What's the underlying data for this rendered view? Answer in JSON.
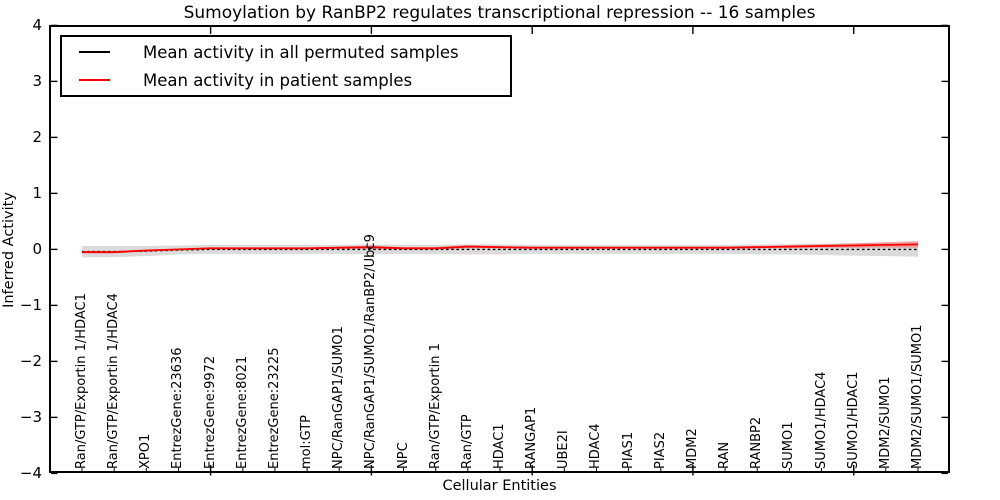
{
  "title": "Sumoylation by RanBP2 regulates transcriptional repression -- 16 samples",
  "axes": {
    "ylabel": "Inferred Activity",
    "xlabel": "Cellular Entities",
    "ytick_labels": [
      "−4",
      "−3",
      "−2",
      "−1",
      "0",
      "1",
      "2",
      "3",
      "4"
    ],
    "yticks": [
      -4,
      -3,
      -2,
      -1,
      0,
      1,
      2,
      3,
      4
    ]
  },
  "legend": {
    "items": [
      {
        "label": "Mean activity in all permuted samples",
        "color": "#000000"
      },
      {
        "label": "Mean activity in patient samples",
        "color": "#ff0000"
      }
    ]
  },
  "chart_data": {
    "type": "line",
    "title": "Sumoylation by RanBP2 regulates transcriptional repression -- 16 samples",
    "xlabel": "Cellular Entities",
    "ylabel": "Inferred Activity",
    "ylim": [
      -4,
      4
    ],
    "grid": false,
    "legend_position": "upper left",
    "categories": [
      "Ran/GTP/Exportin 1/HDAC1",
      "Ran/GTP/Exportin 1/HDAC4",
      "XPO1",
      "EntrezGene:23636",
      "EntrezGene:9972",
      "EntrezGene:8021",
      "EntrezGene:23225",
      "mol:GTP",
      "NPC/RanGAP1/SUMO1",
      "NPC/RanGAP1/SUMO1/RanBP2/Ubc9",
      "NPC",
      "Ran/GTP/Exportin 1",
      "Ran/GTP",
      "HDAC1",
      "RANGAP1",
      "UBE2I",
      "HDAC4",
      "PIAS1",
      "PIAS2",
      "MDM2",
      "RAN",
      "RANBP2",
      "SUMO1",
      "SUMO1/HDAC4",
      "SUMO1/HDAC1",
      "MDM2/SUMO1",
      "MDM2/SUMO1/SUMO1"
    ],
    "series": [
      {
        "name": "Mean activity in all permuted samples",
        "color": "#000000",
        "style": "dashed",
        "values": [
          -0.04,
          -0.04,
          -0.03,
          -0.01,
          0.0,
          0.0,
          0.0,
          0.0,
          0.0,
          0.0,
          0.0,
          0.0,
          0.0,
          0.0,
          0.0,
          0.0,
          0.0,
          0.0,
          0.0,
          0.0,
          0.0,
          0.0,
          0.0,
          0.0,
          0.0,
          0.0,
          0.0
        ]
      },
      {
        "name": "Mean activity in patient samples",
        "color": "#ff0000",
        "style": "solid",
        "values": [
          -0.05,
          -0.05,
          -0.02,
          0.0,
          0.02,
          0.02,
          0.02,
          0.02,
          0.03,
          0.04,
          0.02,
          0.02,
          0.05,
          0.04,
          0.03,
          0.03,
          0.03,
          0.03,
          0.03,
          0.03,
          0.03,
          0.04,
          0.05,
          0.06,
          0.07,
          0.08,
          0.09
        ]
      }
    ],
    "bands": [
      {
        "name": "permuted samples range",
        "center_series": 0,
        "color": "#999999",
        "opacity": 0.35,
        "half_widths": [
          0.1,
          0.1,
          0.09,
          0.08,
          0.08,
          0.08,
          0.08,
          0.08,
          0.08,
          0.09,
          0.08,
          0.08,
          0.09,
          0.09,
          0.08,
          0.08,
          0.08,
          0.08,
          0.08,
          0.08,
          0.08,
          0.09,
          0.09,
          0.1,
          0.11,
          0.12,
          0.13
        ]
      },
      {
        "name": "patient samples range",
        "center_series": 1,
        "color": "#ff0000",
        "opacity": 0.28,
        "half_widths": [
          0.02,
          0.02,
          0.02,
          0.01,
          0.01,
          0.01,
          0.01,
          0.01,
          0.02,
          0.03,
          0.02,
          0.02,
          0.03,
          0.02,
          0.01,
          0.01,
          0.01,
          0.01,
          0.01,
          0.01,
          0.02,
          0.02,
          0.03,
          0.03,
          0.04,
          0.05,
          0.06
        ]
      }
    ],
    "top_tick_indices": [
      4,
      9,
      14,
      19,
      24
    ]
  }
}
